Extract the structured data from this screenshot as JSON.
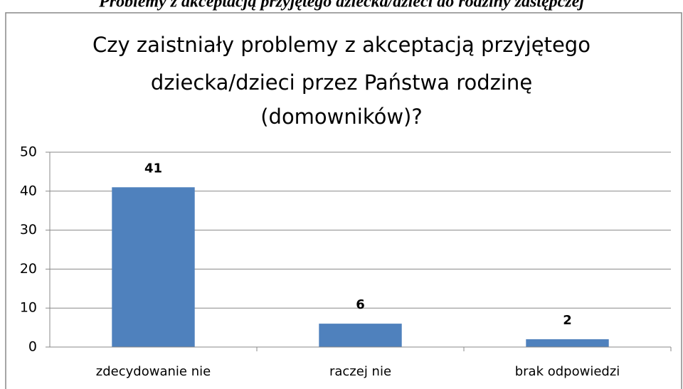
{
  "caption": "Problemy z akceptacją przyjętego dziecka/dzieci do rodziny zastępczej",
  "chart_data": {
    "type": "bar",
    "title": [
      "Czy zaistniały problemy z akceptacją przyjętego",
      "dziecka/dzieci przez Państwa rodzinę",
      "(domowników)?"
    ],
    "categories": [
      "zdecydowanie nie",
      "raczej nie",
      "brak odpowiedzi"
    ],
    "values": [
      41,
      6,
      2
    ],
    "color": "#4f81bd",
    "ylim": [
      0,
      50
    ],
    "yticks": [
      0,
      10,
      20,
      30,
      40,
      50
    ],
    "grid": true
  }
}
